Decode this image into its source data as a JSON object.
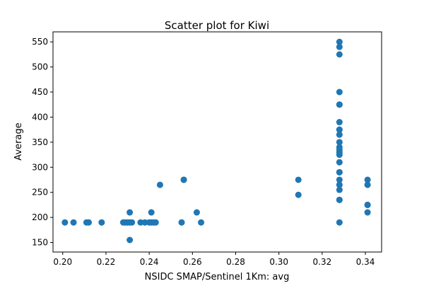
{
  "chart_data": {
    "type": "scatter",
    "title": "Scatter plot for Kiwi",
    "xlabel": "NSIDC SMAP/Sentinel 1Km: avg",
    "ylabel": "Average",
    "xlim": [
      0.1955,
      0.3475
    ],
    "ylim": [
      131,
      570
    ],
    "xticks": [
      0.2,
      0.22,
      0.24,
      0.26,
      0.28,
      0.3,
      0.32,
      0.34
    ],
    "xtick_labels": [
      "0.20",
      "0.22",
      "0.24",
      "0.26",
      "0.28",
      "0.30",
      "0.32",
      "0.34"
    ],
    "yticks": [
      150,
      200,
      250,
      300,
      350,
      400,
      450,
      500,
      550
    ],
    "ytick_labels": [
      "150",
      "200",
      "250",
      "300",
      "350",
      "400",
      "450",
      "500",
      "550"
    ],
    "grid": false,
    "legend": "none",
    "marker_color": "#1f77b4",
    "points": [
      [
        0.201,
        190
      ],
      [
        0.205,
        190
      ],
      [
        0.211,
        190
      ],
      [
        0.212,
        190
      ],
      [
        0.218,
        190
      ],
      [
        0.228,
        190
      ],
      [
        0.229,
        190
      ],
      [
        0.23,
        190
      ],
      [
        0.231,
        190
      ],
      [
        0.232,
        190
      ],
      [
        0.231,
        210
      ],
      [
        0.231,
        155
      ],
      [
        0.236,
        190
      ],
      [
        0.238,
        190
      ],
      [
        0.24,
        190
      ],
      [
        0.241,
        190
      ],
      [
        0.242,
        190
      ],
      [
        0.243,
        190
      ],
      [
        0.241,
        210
      ],
      [
        0.245,
        265
      ],
      [
        0.255,
        190
      ],
      [
        0.256,
        275
      ],
      [
        0.256,
        275
      ],
      [
        0.262,
        210
      ],
      [
        0.264,
        190
      ],
      [
        0.309,
        275
      ],
      [
        0.309,
        245
      ],
      [
        0.328,
        550
      ],
      [
        0.328,
        540
      ],
      [
        0.328,
        525
      ],
      [
        0.328,
        450
      ],
      [
        0.328,
        425
      ],
      [
        0.328,
        425
      ],
      [
        0.328,
        390
      ],
      [
        0.328,
        375
      ],
      [
        0.328,
        375
      ],
      [
        0.328,
        365
      ],
      [
        0.328,
        350
      ],
      [
        0.328,
        340
      ],
      [
        0.328,
        335
      ],
      [
        0.328,
        330
      ],
      [
        0.328,
        325
      ],
      [
        0.328,
        310
      ],
      [
        0.328,
        290
      ],
      [
        0.328,
        290
      ],
      [
        0.328,
        275
      ],
      [
        0.328,
        265
      ],
      [
        0.328,
        255
      ],
      [
        0.328,
        235
      ],
      [
        0.328,
        235
      ],
      [
        0.328,
        190
      ],
      [
        0.341,
        275
      ],
      [
        0.341,
        265
      ],
      [
        0.341,
        225
      ],
      [
        0.341,
        225
      ],
      [
        0.341,
        210
      ]
    ]
  }
}
